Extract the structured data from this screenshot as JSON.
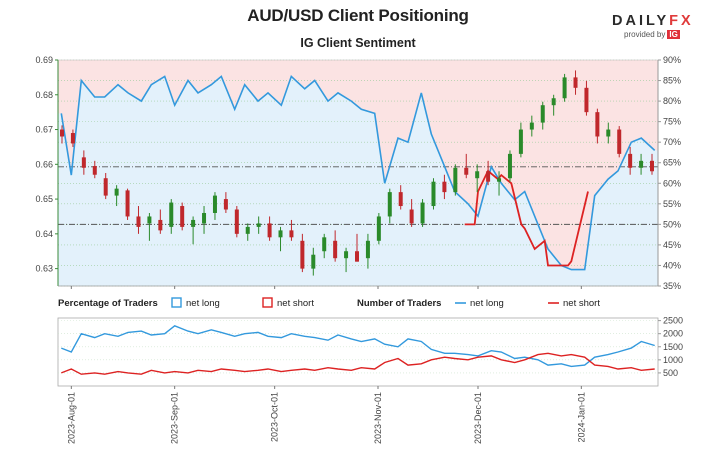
{
  "chart_data": [
    {
      "type": "candlestick+line",
      "title": "AUD/USD Client Positioning",
      "subtitle": "IG Client Sentiment",
      "price_axis": {
        "ticks": [
          "0.69",
          "0.68",
          "0.67",
          "0.66",
          "0.65",
          "0.64",
          "0.63"
        ],
        "ylim": [
          0.625,
          0.69
        ]
      },
      "sentiment_axis": {
        "ticks": [
          "90%",
          "85%",
          "80%",
          "75%",
          "70%",
          "65%",
          "60%",
          "55%",
          "50%",
          "45%",
          "40%",
          "35%"
        ],
        "ylim": [
          35,
          90
        ]
      },
      "reference_lines_pct": [
        50,
        64
      ],
      "net_long_pct": {
        "x": [
          "2023-07-29",
          "2023-08-01",
          "2023-08-04",
          "2023-08-08",
          "2023-08-11",
          "2023-08-15",
          "2023-08-18",
          "2023-08-22",
          "2023-08-25",
          "2023-08-29",
          "2023-09-01",
          "2023-09-05",
          "2023-09-08",
          "2023-09-12",
          "2023-09-15",
          "2023-09-19",
          "2023-09-22",
          "2023-09-26",
          "2023-09-29",
          "2023-10-03",
          "2023-10-06",
          "2023-10-10",
          "2023-10-13",
          "2023-10-17",
          "2023-10-20",
          "2023-10-24",
          "2023-10-27",
          "2023-10-31",
          "2023-11-03",
          "2023-11-07",
          "2023-11-10",
          "2023-11-14",
          "2023-11-17",
          "2023-11-21",
          "2023-11-24",
          "2023-11-28",
          "2023-12-01",
          "2023-12-05",
          "2023-12-08",
          "2023-12-12",
          "2023-12-15",
          "2023-12-19",
          "2023-12-22",
          "2023-12-26",
          "2023-12-29",
          "2024-01-02",
          "2024-01-05",
          "2024-01-09",
          "2024-01-12",
          "2024-01-16",
          "2024-01-19",
          "2024-01-23"
        ],
        "values": [
          77,
          62,
          85,
          81,
          81,
          84,
          82,
          80,
          84,
          86,
          79,
          85,
          82,
          84,
          86,
          78,
          84,
          80,
          82,
          79,
          86,
          83,
          85,
          80,
          82,
          80,
          78,
          77,
          60,
          71,
          70,
          82,
          72,
          64,
          58,
          55,
          52,
          64,
          60,
          56,
          58,
          50,
          44,
          40,
          39,
          39,
          57,
          61,
          63,
          70,
          71,
          68
        ]
      },
      "net_short_pct": {
        "x": [
          "2023-11-27",
          "2023-11-30",
          "2023-12-01",
          "2023-12-04",
          "2023-12-07",
          "2023-12-08",
          "2023-12-11",
          "2023-12-14",
          "2023-12-15",
          "2023-12-18",
          "2023-12-21",
          "2023-12-22",
          "2023-12-26",
          "2023-12-28",
          "2023-12-29",
          "2024-01-03"
        ],
        "values": [
          50,
          50,
          58,
          63,
          61,
          62,
          60,
          50,
          49,
          44,
          46,
          40,
          40,
          40,
          41,
          58
        ]
      },
      "candles": [
        [
          0.67,
          0.6712,
          0.666,
          0.668
        ],
        [
          0.669,
          0.67,
          0.665,
          0.666
        ],
        [
          0.662,
          0.664,
          0.657,
          0.659
        ],
        [
          0.6595,
          0.661,
          0.656,
          0.657
        ],
        [
          0.656,
          0.6575,
          0.65,
          0.651
        ],
        [
          0.651,
          0.654,
          0.648,
          0.653
        ],
        [
          0.6525,
          0.653,
          0.644,
          0.645
        ],
        [
          0.645,
          0.648,
          0.64,
          0.642
        ],
        [
          0.643,
          0.646,
          0.638,
          0.645
        ],
        [
          0.644,
          0.647,
          0.64,
          0.641
        ],
        [
          0.642,
          0.65,
          0.64,
          0.649
        ],
        [
          0.648,
          0.649,
          0.641,
          0.642
        ],
        [
          0.642,
          0.645,
          0.637,
          0.644
        ],
        [
          0.643,
          0.648,
          0.64,
          0.646
        ],
        [
          0.646,
          0.652,
          0.644,
          0.651
        ],
        [
          0.65,
          0.652,
          0.646,
          0.647
        ],
        [
          0.647,
          0.648,
          0.639,
          0.64
        ],
        [
          0.64,
          0.643,
          0.638,
          0.642
        ],
        [
          0.642,
          0.645,
          0.64,
          0.643
        ],
        [
          0.643,
          0.645,
          0.638,
          0.639
        ],
        [
          0.639,
          0.642,
          0.635,
          0.641
        ],
        [
          0.641,
          0.644,
          0.638,
          0.639
        ],
        [
          0.638,
          0.64,
          0.629,
          0.63
        ],
        [
          0.63,
          0.636,
          0.628,
          0.634
        ],
        [
          0.635,
          0.64,
          0.633,
          0.639
        ],
        [
          0.638,
          0.641,
          0.632,
          0.633
        ],
        [
          0.633,
          0.636,
          0.629,
          0.635
        ],
        [
          0.635,
          0.64,
          0.632,
          0.632
        ],
        [
          0.633,
          0.64,
          0.63,
          0.638
        ],
        [
          0.638,
          0.646,
          0.637,
          0.645
        ],
        [
          0.645,
          0.653,
          0.643,
          0.652
        ],
        [
          0.652,
          0.654,
          0.647,
          0.648
        ],
        [
          0.647,
          0.65,
          0.642,
          0.643
        ],
        [
          0.643,
          0.65,
          0.642,
          0.649
        ],
        [
          0.648,
          0.656,
          0.647,
          0.655
        ],
        [
          0.655,
          0.657,
          0.65,
          0.652
        ],
        [
          0.652,
          0.66,
          0.651,
          0.659
        ],
        [
          0.659,
          0.663,
          0.656,
          0.657
        ],
        [
          0.656,
          0.66,
          0.652,
          0.658
        ],
        [
          0.658,
          0.661,
          0.654,
          0.655
        ],
        [
          0.655,
          0.658,
          0.651,
          0.656
        ],
        [
          0.656,
          0.664,
          0.655,
          0.663
        ],
        [
          0.663,
          0.672,
          0.662,
          0.67
        ],
        [
          0.67,
          0.674,
          0.668,
          0.672
        ],
        [
          0.672,
          0.678,
          0.67,
          0.677
        ],
        [
          0.677,
          0.68,
          0.674,
          0.679
        ],
        [
          0.679,
          0.686,
          0.678,
          0.685
        ],
        [
          0.685,
          0.687,
          0.68,
          0.682
        ],
        [
          0.682,
          0.684,
          0.674,
          0.675
        ],
        [
          0.675,
          0.676,
          0.666,
          0.668
        ],
        [
          0.668,
          0.672,
          0.666,
          0.67
        ],
        [
          0.67,
          0.671,
          0.662,
          0.663
        ],
        [
          0.663,
          0.665,
          0.657,
          0.659
        ],
        [
          0.659,
          0.663,
          0.657,
          0.661
        ],
        [
          0.661,
          0.663,
          0.657,
          0.658
        ]
      ],
      "lower_panel": {
        "legend": {
          "pct_heading": "Percentage of Traders",
          "num_heading": "Number of Traders",
          "net_long": "net long",
          "net_short": "net short"
        },
        "yticks": [
          "2500",
          "2000",
          "1500",
          "1000",
          "500"
        ],
        "ylim": [
          0,
          2600
        ],
        "net_long_traders": [
          1450,
          1300,
          2000,
          1850,
          2000,
          1900,
          2050,
          2100,
          1950,
          2000,
          2300,
          2100,
          2000,
          2150,
          2050,
          1900,
          2000,
          2050,
          1900,
          1850,
          2000,
          1900,
          1850,
          1750,
          1950,
          1800,
          1700,
          1800,
          1600,
          1500,
          1800,
          1700,
          1400,
          1250,
          1250,
          1200,
          1150,
          1350,
          1300,
          1050,
          1100,
          1000,
          800,
          850,
          750,
          800,
          1100,
          1200,
          1300,
          1450,
          1700,
          1550
        ],
        "net_short_traders": [
          500,
          650,
          450,
          500,
          450,
          550,
          500,
          450,
          600,
          500,
          550,
          500,
          600,
          550,
          650,
          600,
          550,
          600,
          650,
          550,
          600,
          650,
          600,
          700,
          650,
          600,
          700,
          650,
          900,
          1050,
          800,
          850,
          1000,
          1100,
          1050,
          1000,
          1100,
          1150,
          1000,
          900,
          1000,
          1200,
          1250,
          1150,
          1200,
          1100,
          800,
          750,
          650,
          700,
          600,
          650
        ]
      },
      "x_ticks": [
        "2023-Aug-01",
        "2023-Sep-01",
        "2023-Oct-01",
        "2023-Nov-01",
        "2023-Dec-01",
        "2024-Jan-01"
      ]
    }
  ],
  "brand": {
    "word": "DAILY",
    "fx": "FX",
    "provided": "provided by",
    "ig": "IG"
  },
  "colors": {
    "long_line": "#3399dd",
    "short_line": "#dd2222",
    "long_fill": "#e3f1fb",
    "short_fill": "#fbe3e3",
    "up_candle": "#2a8a2a",
    "down_candle": "#c0282c",
    "axis_green": "#3a8a3a"
  }
}
